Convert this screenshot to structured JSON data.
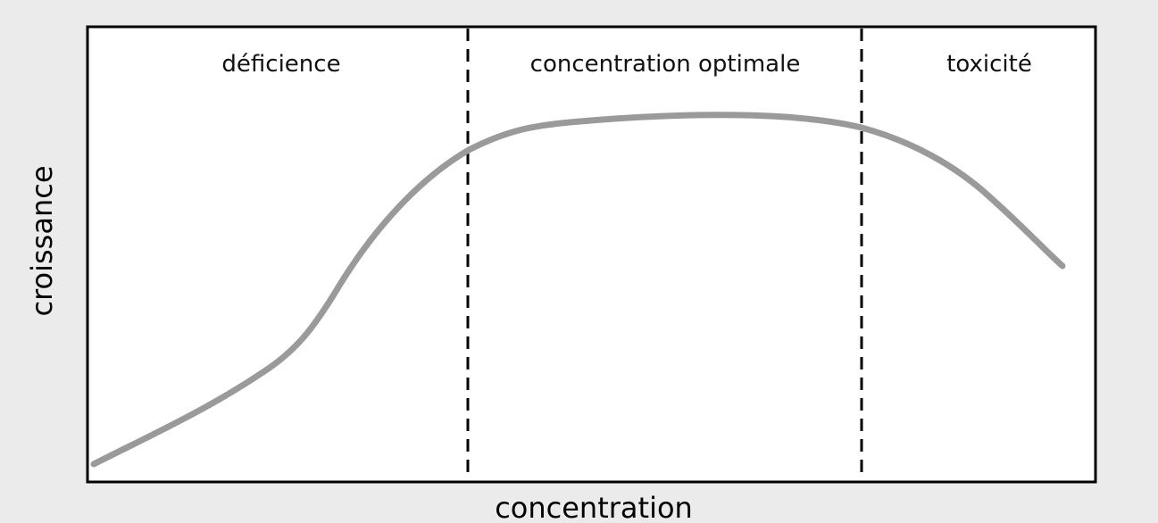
{
  "x_axis_label": "concentration",
  "y_axis_label": "croissance",
  "regions": [
    {
      "label": "déficience"
    },
    {
      "label": "concentration optimale"
    },
    {
      "label": "toxicité"
    }
  ]
}
